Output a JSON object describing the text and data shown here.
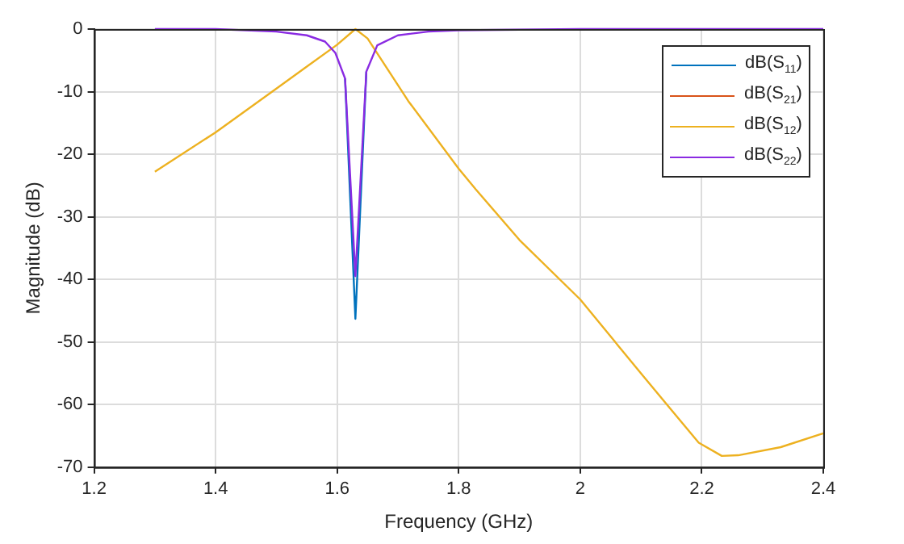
{
  "chart_data": {
    "type": "line",
    "xlabel": "Frequency (GHz)",
    "ylabel": "Magnitude (dB)",
    "xlim": [
      1.2,
      2.4
    ],
    "xticks": [
      1.2,
      1.4,
      1.6,
      1.8,
      2,
      2.2,
      2.4
    ],
    "ylim": [
      -70,
      0
    ],
    "yticks": [
      -70,
      -60,
      -50,
      -40,
      -30,
      -20,
      -10,
      0
    ],
    "grid": true,
    "legend": "top right",
    "marker": "none",
    "line_style": "solid",
    "series": [
      {
        "name": "dB(S$_{11}$)",
        "color": "#0072bd",
        "x": [
          1.613,
          1.63,
          1.648
        ],
        "values": [
          -7.9,
          -46.3,
          -6.8
        ]
      },
      {
        "name": "dB(S$_{21}$)",
        "color": "#d95319"
      },
      {
        "name": "dB(S$_{12}$)",
        "color": "#edb120",
        "x": [
          1.3,
          1.4,
          1.5,
          1.55,
          1.6,
          1.63,
          1.65,
          1.717,
          1.8,
          1.828,
          1.9,
          2.0,
          2.104,
          2.195,
          2.233,
          2.26,
          2.33,
          2.4
        ],
        "values": [
          -22.8,
          -16.5,
          -9.5,
          -6,
          -2.5,
          0,
          -1.5,
          -11.5,
          -22.3,
          -25.6,
          -33.7,
          -43.2,
          -55.5,
          -66.1,
          -68.2,
          -68.1,
          -66.8,
          -64.6
        ]
      },
      {
        "name": "dB(S$_{22}$)",
        "color": "#8a2be2",
        "x": [
          1.3,
          1.4,
          1.5,
          1.55,
          1.58,
          1.597,
          1.613,
          1.63,
          1.648,
          1.666,
          1.7,
          1.75,
          1.8,
          1.9,
          2.0,
          2.2,
          2.4
        ],
        "values": [
          0,
          0,
          -0.4,
          -1,
          -2,
          -3.8,
          -7.9,
          -39.5,
          -6.8,
          -2.6,
          -1,
          -0.4,
          -0.2,
          -0.1,
          0,
          0,
          0
        ]
      }
    ]
  }
}
